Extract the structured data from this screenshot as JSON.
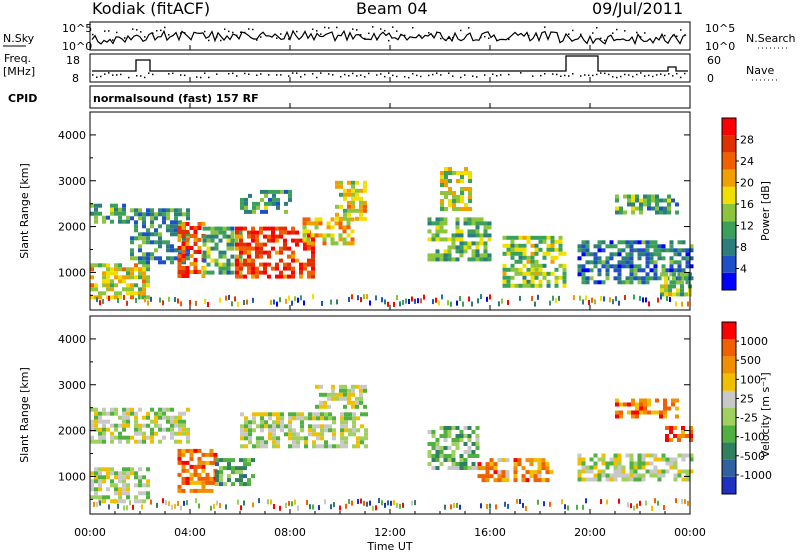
{
  "header": {
    "station": "Kodiak (fitACF)",
    "beam": "Beam 04",
    "date": "09/Jul/2011"
  },
  "noise_panel": {
    "left_label": "N.Sky",
    "right_label": "N.Search",
    "left_ticks": [
      "10^5",
      "10^0"
    ],
    "right_ticks": [
      "10^5",
      "10^0"
    ]
  },
  "freq_panel": {
    "left_label_line1": "Freq.",
    "left_label_line2": "[MHz]",
    "right_label": "Nave",
    "left_ticks": [
      "18",
      "8"
    ],
    "right_ticks": [
      "60",
      "0"
    ]
  },
  "cpid": {
    "label": "CPID",
    "value": "normalsound (fast) 157 RF"
  },
  "chart_data": [
    {
      "type": "heatmap",
      "title": "",
      "ylabel": "Slant Range [km]",
      "xlabel": "",
      "x_ticks": [
        "00:00",
        "04:00",
        "08:00",
        "12:00",
        "16:00",
        "20:00",
        "00:00"
      ],
      "y_ticks": [
        "1000",
        "2000",
        "3000",
        "4000"
      ],
      "ylim": [
        180,
        4500
      ],
      "xlim_hours": [
        0,
        24
      ],
      "colorbar": {
        "label": "Power [dB]",
        "ticks": [
          "4",
          "8",
          "12",
          "16",
          "20",
          "24",
          "28"
        ],
        "colors": [
          "#0000ff",
          "#1e50c8",
          "#2e7d7d",
          "#3aa05a",
          "#8cc43c",
          "#f0e000",
          "#f0a000",
          "#f06000",
          "#e03000",
          "#ff0000"
        ]
      },
      "bands": [
        {
          "t0": 0.0,
          "t1": 2.3,
          "r0": 450,
          "r1": 1200,
          "level": 0.55
        },
        {
          "t0": 0.0,
          "t1": 1.6,
          "r0": 2100,
          "r1": 2500,
          "level": 0.35
        },
        {
          "t0": 1.6,
          "t1": 4.0,
          "r0": 1200,
          "r1": 2400,
          "level": 0.3
        },
        {
          "t0": 3.5,
          "t1": 4.6,
          "r0": 900,
          "r1": 2100,
          "level": 0.8
        },
        {
          "t0": 4.5,
          "t1": 6.0,
          "r0": 1000,
          "r1": 2000,
          "level": 0.35
        },
        {
          "t0": 5.8,
          "t1": 9.0,
          "r0": 900,
          "r1": 2000,
          "level": 0.85
        },
        {
          "t0": 8.5,
          "t1": 10.5,
          "r0": 1600,
          "r1": 2200,
          "level": 0.6
        },
        {
          "t0": 9.8,
          "t1": 11.0,
          "r0": 2200,
          "r1": 3000,
          "level": 0.55
        },
        {
          "t0": 6.0,
          "t1": 8.0,
          "r0": 2300,
          "r1": 2800,
          "level": 0.35
        },
        {
          "t0": 13.5,
          "t1": 16.0,
          "r0": 1300,
          "r1": 2200,
          "level": 0.4
        },
        {
          "t0": 14.0,
          "t1": 15.2,
          "r0": 2400,
          "r1": 3300,
          "level": 0.5
        },
        {
          "t0": 16.5,
          "t1": 19.0,
          "r0": 700,
          "r1": 1800,
          "level": 0.45
        },
        {
          "t0": 19.5,
          "t1": 24.0,
          "r0": 800,
          "r1": 1700,
          "level": 0.25
        },
        {
          "t0": 21.0,
          "t1": 23.5,
          "r0": 2300,
          "r1": 2700,
          "level": 0.35
        },
        {
          "t0": 22.8,
          "t1": 24.0,
          "r0": 500,
          "r1": 1000,
          "level": 0.45
        }
      ]
    },
    {
      "type": "heatmap",
      "title": "",
      "ylabel": "Slant Range [km]",
      "xlabel": "Time UT",
      "x_ticks": [
        "00:00",
        "04:00",
        "08:00",
        "12:00",
        "16:00",
        "20:00",
        "00:00"
      ],
      "y_ticks": [
        "1000",
        "2000",
        "3000",
        "4000"
      ],
      "ylim": [
        180,
        4500
      ],
      "xlim_hours": [
        0,
        24
      ],
      "colorbar": {
        "label": "Velocity [m s⁻¹]",
        "ticks": [
          "1000",
          "500",
          "100",
          "25",
          "-25",
          "-100",
          "-500",
          "-1000"
        ],
        "colors": [
          "#2030c0",
          "#3060a0",
          "#308060",
          "#50b040",
          "#a0d060",
          "#c8c8c8",
          "#f0c000",
          "#f09000",
          "#f06000",
          "#ff0000"
        ]
      },
      "bands": [
        {
          "t0": 0.0,
          "t1": 2.3,
          "r0": 450,
          "r1": 1200,
          "level": 0.5
        },
        {
          "t0": 0.0,
          "t1": 4.0,
          "r0": 1800,
          "r1": 2500,
          "level": 0.5
        },
        {
          "t0": 3.5,
          "t1": 5.0,
          "r0": 700,
          "r1": 1600,
          "level": 0.82
        },
        {
          "t0": 5.0,
          "t1": 6.5,
          "r0": 800,
          "r1": 1400,
          "level": 0.3
        },
        {
          "t0": 6.0,
          "t1": 11.0,
          "r0": 1700,
          "r1": 2400,
          "level": 0.5
        },
        {
          "t0": 9.0,
          "t1": 11.0,
          "r0": 2500,
          "r1": 3000,
          "level": 0.5
        },
        {
          "t0": 13.5,
          "t1": 15.5,
          "r0": 1200,
          "r1": 2100,
          "level": 0.38
        },
        {
          "t0": 15.5,
          "t1": 18.5,
          "r0": 900,
          "r1": 1400,
          "level": 0.75
        },
        {
          "t0": 19.5,
          "t1": 24.0,
          "r0": 900,
          "r1": 1500,
          "level": 0.5
        },
        {
          "t0": 21.0,
          "t1": 23.5,
          "r0": 2300,
          "r1": 2700,
          "level": 0.78
        },
        {
          "t0": 23.0,
          "t1": 24.0,
          "r0": 1800,
          "r1": 2100,
          "level": 0.82
        }
      ]
    }
  ]
}
